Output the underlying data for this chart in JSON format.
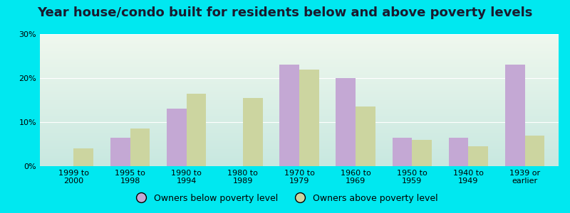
{
  "title": "Year house/condo built for residents below and above poverty levels",
  "categories": [
    "1999 to\n2000",
    "1995 to\n1998",
    "1990 to\n1994",
    "1980 to\n1989",
    "1970 to\n1979",
    "1960 to\n1969",
    "1950 to\n1959",
    "1940 to\n1949",
    "1939 or\nearlier"
  ],
  "below_poverty": [
    0.0,
    6.5,
    13.0,
    0.0,
    23.0,
    20.0,
    6.5,
    6.5,
    23.0
  ],
  "above_poverty": [
    4.0,
    8.5,
    16.5,
    15.5,
    22.0,
    13.5,
    6.0,
    4.5,
    7.0
  ],
  "below_color": "#c4a8d4",
  "above_color": "#ccd5a0",
  "bg_color_outer": "#00e8f0",
  "bg_color_inner_top": "#f0f8ee",
  "bg_color_inner_bottom": "#c8e8e0",
  "ylim": [
    0,
    30
  ],
  "yticks": [
    0,
    10,
    20,
    30
  ],
  "ytick_labels": [
    "0%",
    "10%",
    "20%",
    "30%"
  ],
  "legend_below": "Owners below poverty level",
  "legend_above": "Owners above poverty level",
  "bar_width": 0.35,
  "title_fontsize": 13,
  "tick_fontsize": 8,
  "legend_fontsize": 9
}
